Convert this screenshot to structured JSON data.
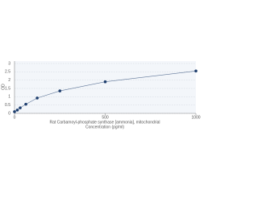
{
  "chart_data": {
    "type": "scatter",
    "title": "Rat Carbamoyl-phosphate synthase [ammonia], mitochondrial",
    "x_label": "Concentration (pg/ml)",
    "y_label": "OD",
    "x": [
      0,
      15.6,
      31.25,
      62.5,
      125,
      250,
      500,
      1000
    ],
    "series": [
      {
        "name": "OD",
        "color": "#1f3f6e",
        "values": [
          0.1,
          0.2,
          0.33,
          0.55,
          0.92,
          1.35,
          1.9,
          2.55
        ]
      }
    ],
    "xlim": [
      0,
      1000
    ],
    "xticks": [
      0,
      500,
      1000
    ],
    "ylim": [
      0,
      3
    ],
    "yticks": [
      0,
      0.5,
      1,
      1.5,
      2,
      2.5,
      3
    ],
    "grid": true
  }
}
